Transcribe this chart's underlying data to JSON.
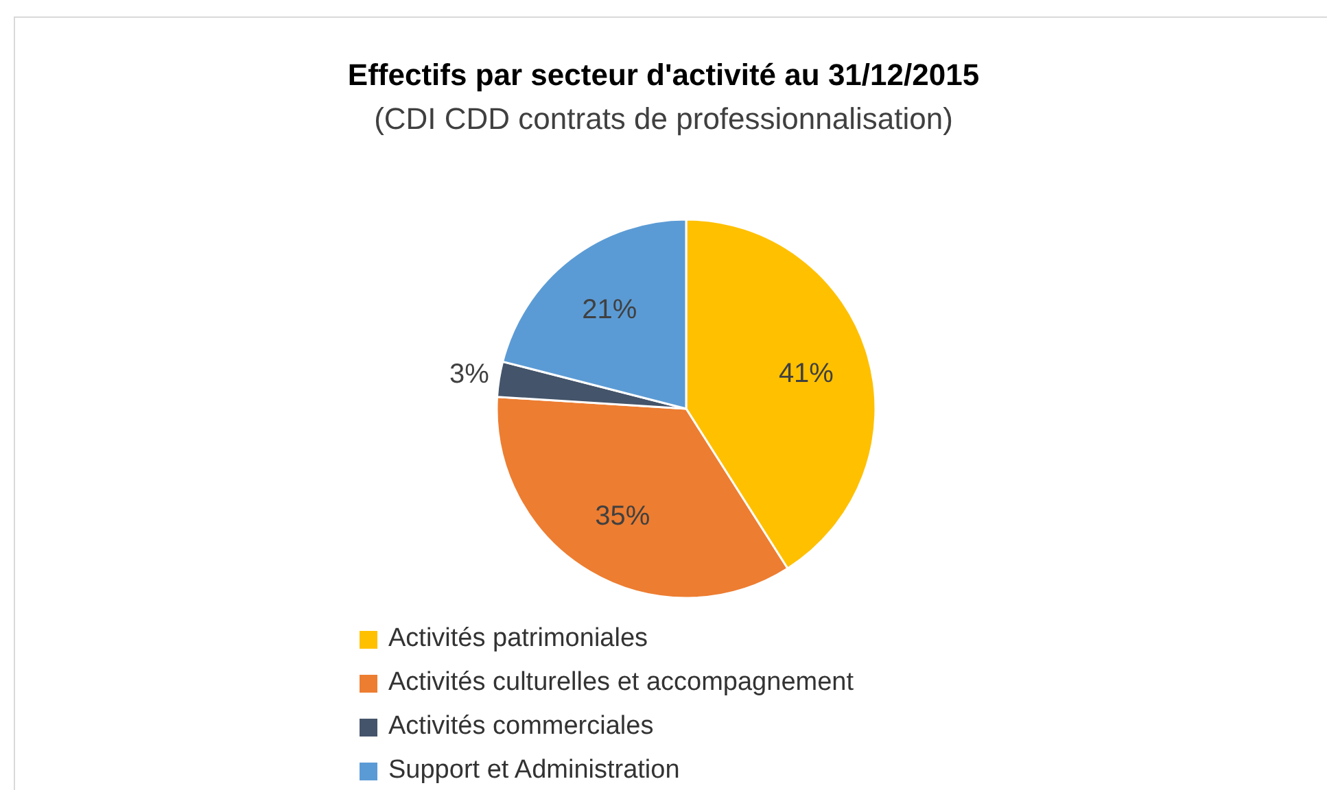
{
  "chart_data": {
    "type": "pie",
    "title": "Effectifs par secteur d'activité au 31/12/2015",
    "subtitle": "(CDI CDD contrats de professionnalisation)",
    "categories": [
      "Activités patrimoniales",
      "Activités culturelles et accompagnement",
      "Activités commerciales",
      "Support et Administration"
    ],
    "values": [
      41,
      35,
      3,
      21
    ],
    "colors": [
      "#ffc000",
      "#ed7d31",
      "#44546a",
      "#5b9bd5"
    ],
    "value_labels": [
      "41%",
      "35%",
      "3%",
      "21%"
    ],
    "legend": "bottom"
  }
}
